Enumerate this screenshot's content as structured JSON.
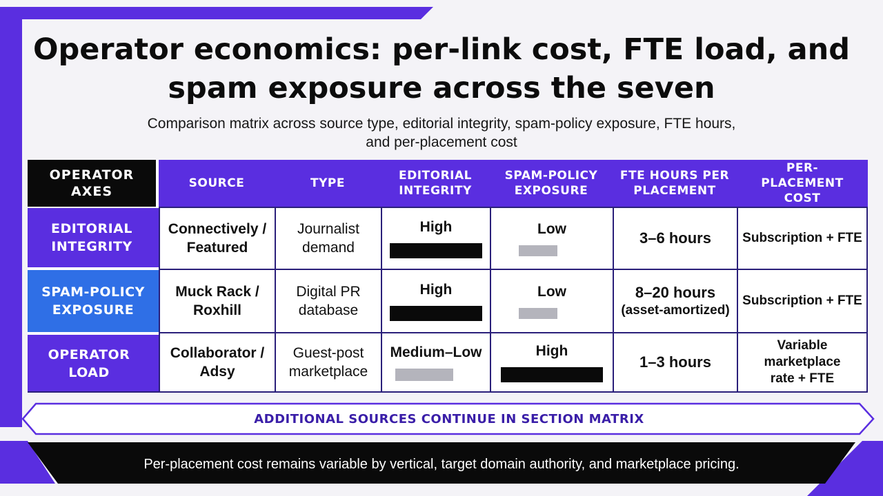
{
  "title": "Operator economics: per-link cost, FTE load, and spam exposure across the seven",
  "subtitle": "Comparison matrix across source type, editorial integrity, spam-policy exposure, FTE hours, and per-placement cost",
  "matrix": {
    "corner_label": "OPERATOR AXES",
    "columns": [
      "SOURCE",
      "TYPE",
      "EDITORIAL INTEGRITY",
      "SPAM-POLICY EXPOSURE",
      "FTE HOURS PER PLACEMENT",
      "PER-PLACEMENT COST"
    ],
    "rows": [
      {
        "axis": "EDITORIAL INTEGRITY",
        "source": "Connectively / Featured",
        "type": "Journalist demand",
        "editorial": "High",
        "editorial_level": "high",
        "spam": "Low",
        "spam_level": "low",
        "fte": "3–6 hours",
        "fte_note": "",
        "cost": "Subscription + FTE"
      },
      {
        "axis": "SPAM-POLICY EXPOSURE",
        "source": "Muck Rack / Roxhill",
        "type": "Digital PR database",
        "editorial": "High",
        "editorial_level": "high",
        "spam": "Low",
        "spam_level": "low",
        "fte": "8–20 hours",
        "fte_note": "(asset-amortized)",
        "cost": "Subscription + FTE"
      },
      {
        "axis": "OPERATOR LOAD",
        "source": "Collaborator / Adsy",
        "type": "Guest-post marketplace",
        "editorial": "Medium–Low",
        "editorial_level": "medium-low",
        "spam": "High",
        "spam_level": "high",
        "fte": "1–3 hours",
        "fte_note": "",
        "cost": "Variable marketplace rate + FTE"
      }
    ]
  },
  "note_band": "ADDITIONAL SOURCES CONTINUE IN SECTION MATRIX",
  "footer": "Per-placement cost remains variable by vertical, target domain authority, and marketplace pricing.",
  "colors": {
    "accent_purple": "#5a2ee0",
    "accent_blue": "#2f6fe6",
    "dark": "#0a0a0a",
    "grey_bar": "#b4b4bc"
  }
}
